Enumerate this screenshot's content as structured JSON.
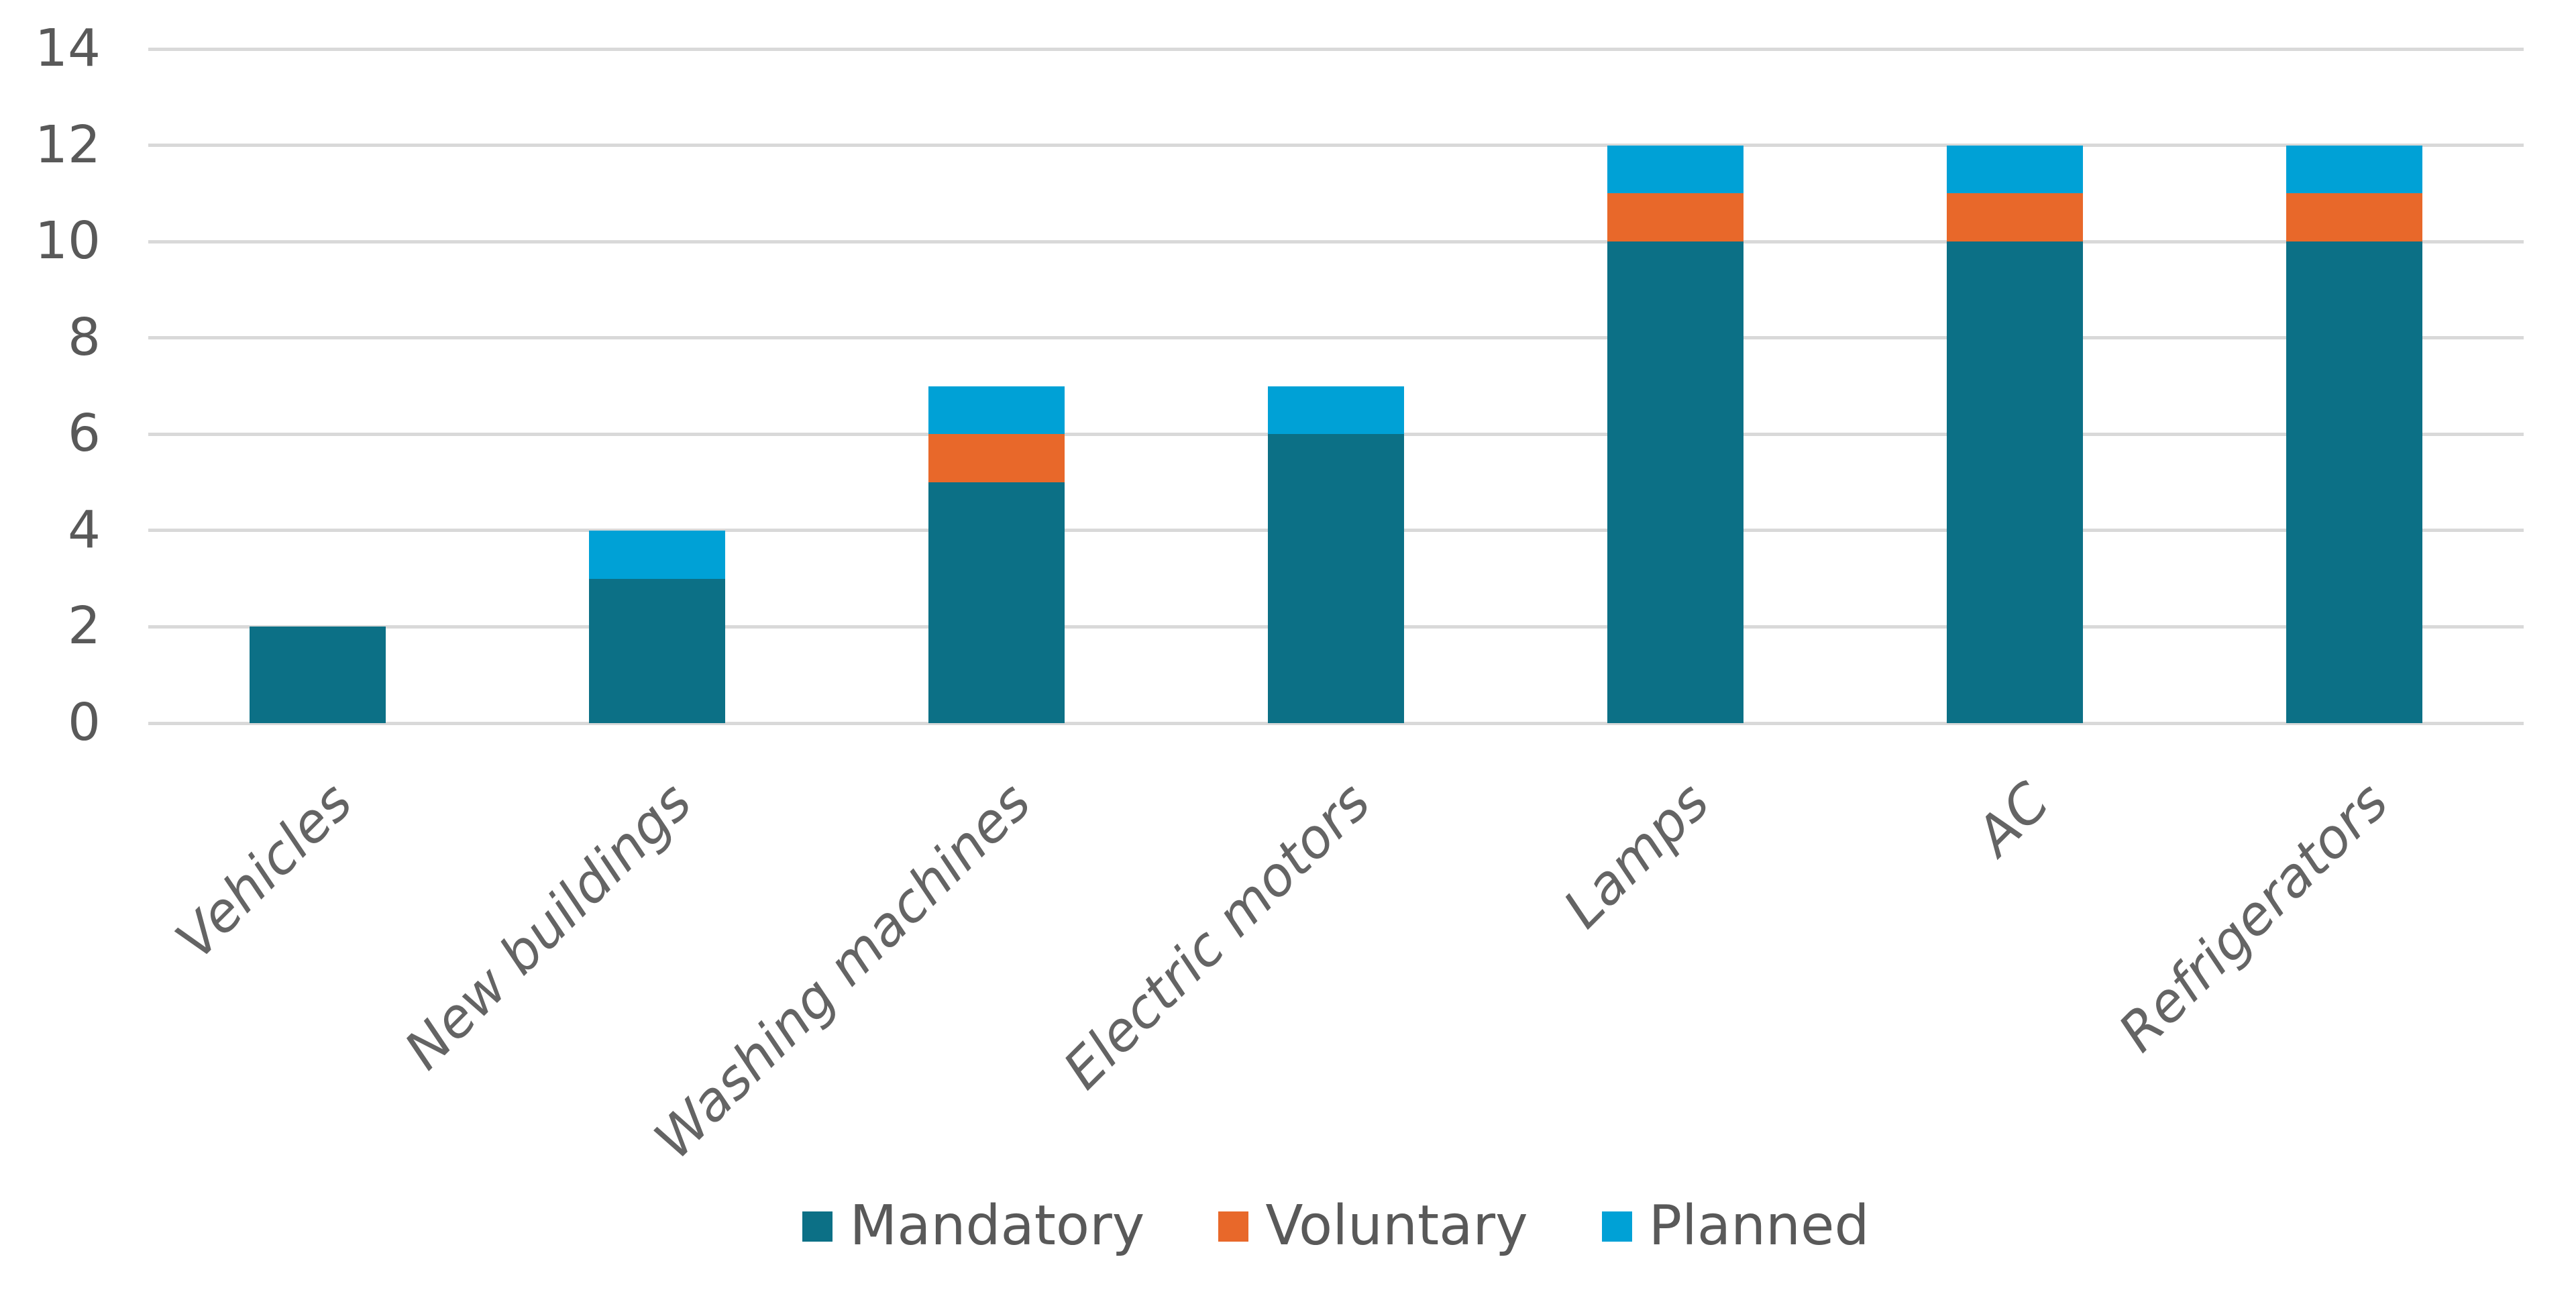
{
  "chart_data": {
    "type": "bar",
    "stacked": true,
    "title": "",
    "xlabel": "",
    "ylabel": "",
    "categories": [
      "Vehicles",
      "New buildings",
      "Washing machines",
      "Electric motors",
      "Lamps",
      "AC",
      "Refrigerators"
    ],
    "series": [
      {
        "name": "Mandatory",
        "color": "#0C7086",
        "values": [
          2,
          3,
          5,
          6,
          10,
          10,
          10
        ]
      },
      {
        "name": "Voluntary",
        "color": "#E8682A",
        "values": [
          0,
          0,
          1,
          0,
          1,
          1,
          1
        ]
      },
      {
        "name": "Planned",
        "color": "#00A1D6",
        "values": [
          0,
          1,
          1,
          1,
          1,
          1,
          1
        ]
      }
    ],
    "totals": [
      2,
      4,
      7,
      7,
      12,
      12,
      12
    ],
    "ylim": [
      0,
      14
    ],
    "yticks": [
      0,
      2,
      4,
      6,
      8,
      10,
      12,
      14
    ],
    "grid": true,
    "legend_position": "bottom"
  },
  "colors": {
    "background": "#FFFFFF",
    "gridline": "#D9D9D9",
    "tick_label": "#595959",
    "category_label": "#646464",
    "legend_label": "#595959"
  }
}
